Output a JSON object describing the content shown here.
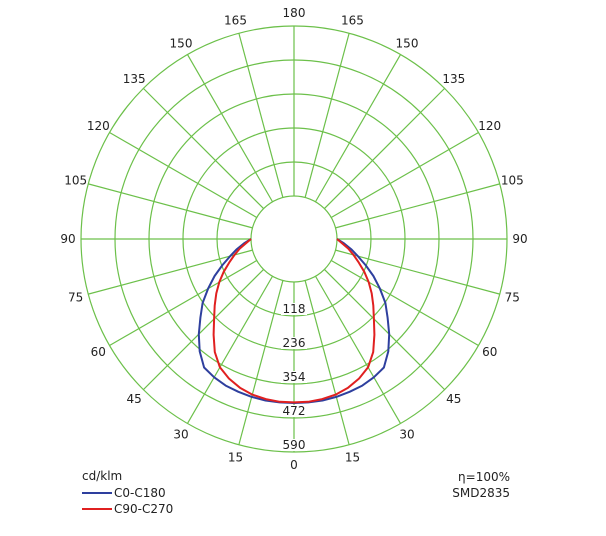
{
  "chart_data": {
    "type": "polar",
    "unit": "cd/klm",
    "radial_ticks": [
      118,
      236,
      354,
      472,
      590
    ],
    "rmax": 590,
    "angle_labels_left": [
      "180",
      "165",
      "150",
      "135",
      "120",
      "105",
      "90",
      "75",
      "60",
      "45",
      "30",
      "15",
      "0"
    ],
    "angle_labels_right": [
      "165",
      "150",
      "135",
      "120",
      "105",
      "90",
      "75",
      "60",
      "45",
      "30",
      "15"
    ],
    "angles": [
      0,
      5,
      10,
      15,
      20,
      25,
      30,
      35,
      40,
      45,
      50,
      55,
      60,
      65,
      70,
      75,
      80,
      85,
      90
    ],
    "series": [
      {
        "name": "C0-C180",
        "color": "#2e3f9e",
        "values": [
          420,
          420,
          420,
          418,
          415,
          412,
          405,
          395,
          360,
          318,
          275,
          238,
          195,
          155,
          115,
          80,
          52,
          25,
          0
        ]
      },
      {
        "name": "C90-C270",
        "color": "#e02020",
        "values": [
          418,
          418,
          415,
          410,
          400,
          385,
          365,
          330,
          285,
          243,
          210,
          180,
          150,
          120,
          90,
          65,
          42,
          18,
          0
        ]
      }
    ]
  },
  "info": {
    "efficiency": "η=100%",
    "led": "SMD2835"
  }
}
